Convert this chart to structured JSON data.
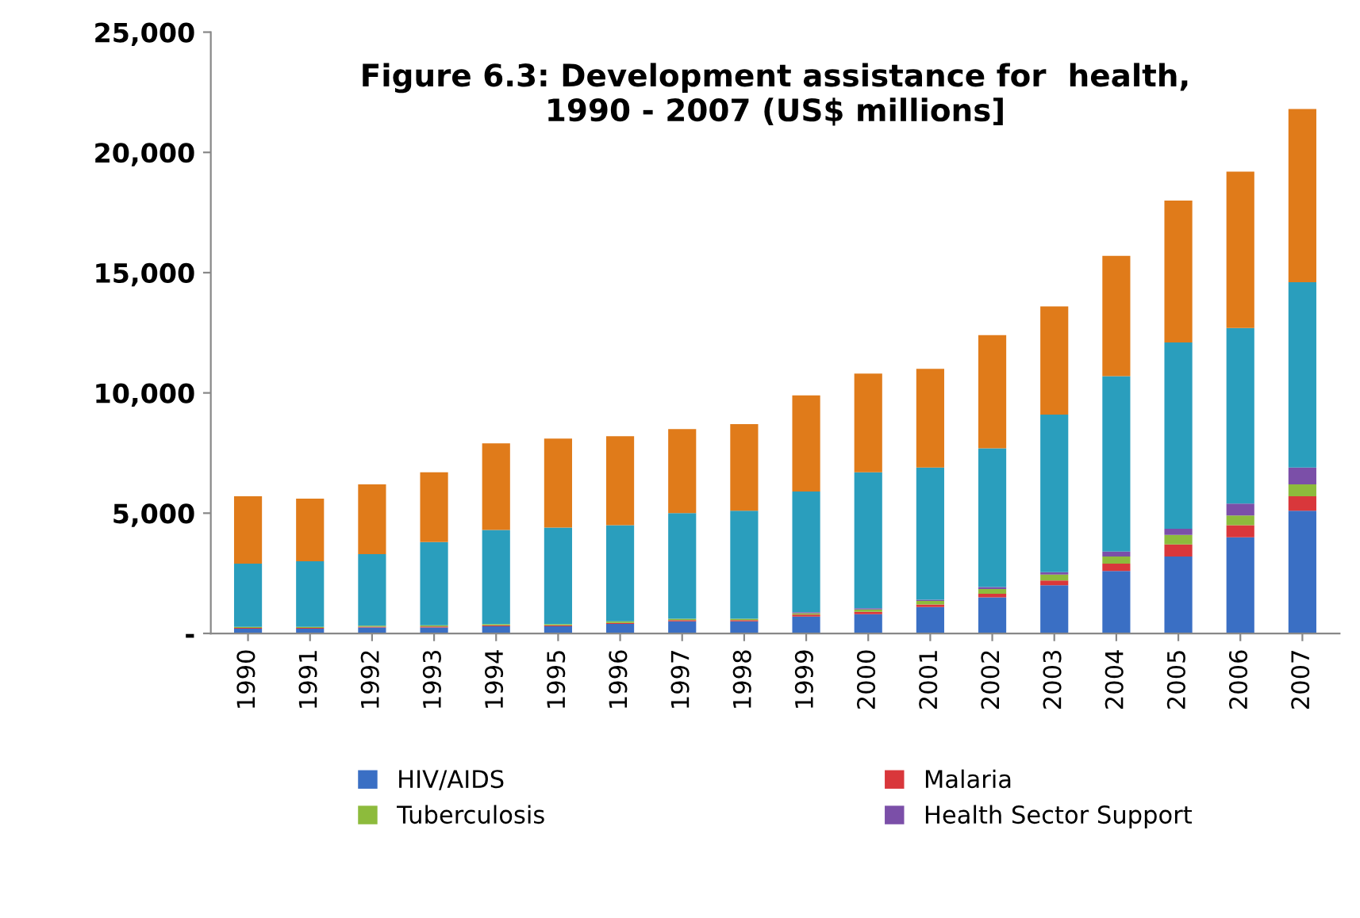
{
  "chart_data": {
    "type": "bar",
    "stacked": true,
    "title": "Figure 6.3: Development assistance for  health,\n1990 - 2007 (US$ millions]",
    "categories": [
      "1990",
      "1991",
      "1992",
      "1993",
      "1994",
      "1995",
      "1996",
      "1997",
      "1998",
      "1999",
      "2000",
      "2001",
      "2002",
      "2003",
      "2004",
      "2005",
      "2006",
      "2007"
    ],
    "series": [
      {
        "name": "HIV/AIDS",
        "color": "#3a6fc4",
        "values": [
          200,
          200,
          250,
          250,
          300,
          300,
          400,
          500,
          500,
          700,
          800,
          1100,
          1500,
          2000,
          2600,
          3200,
          4000,
          5100
        ]
      },
      {
        "name": "Malaria",
        "color": "#d9373b",
        "values": [
          30,
          30,
          30,
          40,
          40,
          40,
          40,
          50,
          50,
          80,
          100,
          100,
          150,
          200,
          300,
          500,
          500,
          600
        ]
      },
      {
        "name": "Tuberculosis",
        "color": "#8dbb3c",
        "values": [
          40,
          40,
          40,
          50,
          50,
          50,
          60,
          60,
          60,
          60,
          100,
          150,
          200,
          250,
          300,
          400,
          400,
          500
        ]
      },
      {
        "name": "Health Sector Support",
        "color": "#7b4fa8",
        "values": [
          null,
          null,
          null,
          null,
          null,
          null,
          null,
          null,
          null,
          40,
          50,
          50,
          80,
          100,
          200,
          250,
          500,
          700
        ]
      },
      {
        "color": "#2a9ebd",
        "values": [
          2630,
          2730,
          2980,
          3460,
          3910,
          4010,
          4000,
          4390,
          4490,
          5020,
          5650,
          5500,
          5770,
          6550,
          7300,
          7750,
          7300,
          7700
        ]
      },
      {
        "color": "#e07b1a",
        "values": [
          2800,
          2600,
          2900,
          2900,
          3600,
          3700,
          3700,
          3500,
          3600,
          4000,
          4100,
          4100,
          4700,
          4500,
          5000,
          5900,
          6500,
          7200
        ]
      }
    ],
    "ylim": [
      0,
      25000
    ],
    "yticks": [
      {
        "value": 0,
        "label": "-"
      },
      {
        "value": 5000,
        "label": "5,000"
      },
      {
        "value": 10000,
        "label": "10,000"
      },
      {
        "value": 15000,
        "label": "15,000"
      },
      {
        "value": 20000,
        "label": "20,000"
      },
      {
        "value": 25000,
        "label": "25,000"
      }
    ],
    "grid": false,
    "legend": "bottom"
  }
}
